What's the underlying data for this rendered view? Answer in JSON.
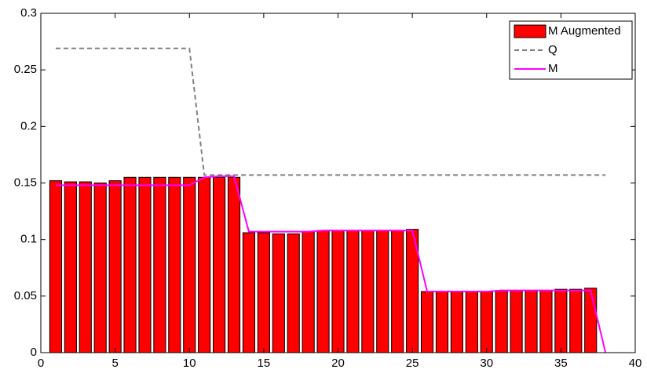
{
  "chart_data": {
    "type": "combo",
    "x": [
      1,
      2,
      3,
      4,
      5,
      6,
      7,
      8,
      9,
      10,
      11,
      12,
      13,
      14,
      15,
      16,
      17,
      18,
      19,
      20,
      21,
      22,
      23,
      24,
      25,
      26,
      27,
      28,
      29,
      30,
      31,
      32,
      33,
      34,
      35,
      36,
      37,
      38
    ],
    "series": [
      {
        "name": "M Augmented",
        "type": "bar",
        "color": "#ff0000",
        "values": [
          0.152,
          0.151,
          0.151,
          0.15,
          0.152,
          0.155,
          0.155,
          0.155,
          0.155,
          0.155,
          0.155,
          0.155,
          0.155,
          0.106,
          0.106,
          0.105,
          0.105,
          0.107,
          0.108,
          0.108,
          0.108,
          0.108,
          0.108,
          0.108,
          0.109,
          0.054,
          0.054,
          0.054,
          0.054,
          0.054,
          0.055,
          0.055,
          0.055,
          0.055,
          0.056,
          0.056,
          0.057,
          0
        ]
      },
      {
        "name": "Q",
        "type": "line",
        "dashed": true,
        "color": "#808080",
        "values": [
          0.269,
          0.269,
          0.269,
          0.269,
          0.269,
          0.269,
          0.269,
          0.269,
          0.269,
          0.269,
          0.157,
          0.157,
          0.157,
          0.157,
          0.157,
          0.157,
          0.157,
          0.157,
          0.157,
          0.157,
          0.157,
          0.157,
          0.157,
          0.157,
          0.157,
          0.157,
          0.157,
          0.157,
          0.157,
          0.157,
          0.157,
          0.157,
          0.157,
          0.157,
          0.157,
          0.157,
          0.157,
          0.157
        ]
      },
      {
        "name": "M",
        "type": "line",
        "dashed": false,
        "color": "#ff00ff",
        "values": [
          0.148,
          0.148,
          0.148,
          0.148,
          0.148,
          0.148,
          0.148,
          0.148,
          0.148,
          0.148,
          0.155,
          0.156,
          0.156,
          0.107,
          0.107,
          0.107,
          0.107,
          0.107,
          0.108,
          0.108,
          0.108,
          0.108,
          0.108,
          0.108,
          0.108,
          0.054,
          0.054,
          0.054,
          0.054,
          0.054,
          0.055,
          0.055,
          0.055,
          0.055,
          0.055,
          0.055,
          0.055,
          0
        ]
      }
    ],
    "xlim": [
      0,
      40
    ],
    "xticks": [
      0,
      5,
      10,
      15,
      20,
      25,
      30,
      35,
      40
    ],
    "ylim": [
      0,
      0.3
    ],
    "yticks": [
      0,
      0.05,
      0.1,
      0.15,
      0.2,
      0.25,
      0.3
    ],
    "grid": false,
    "legend": "top-right"
  }
}
